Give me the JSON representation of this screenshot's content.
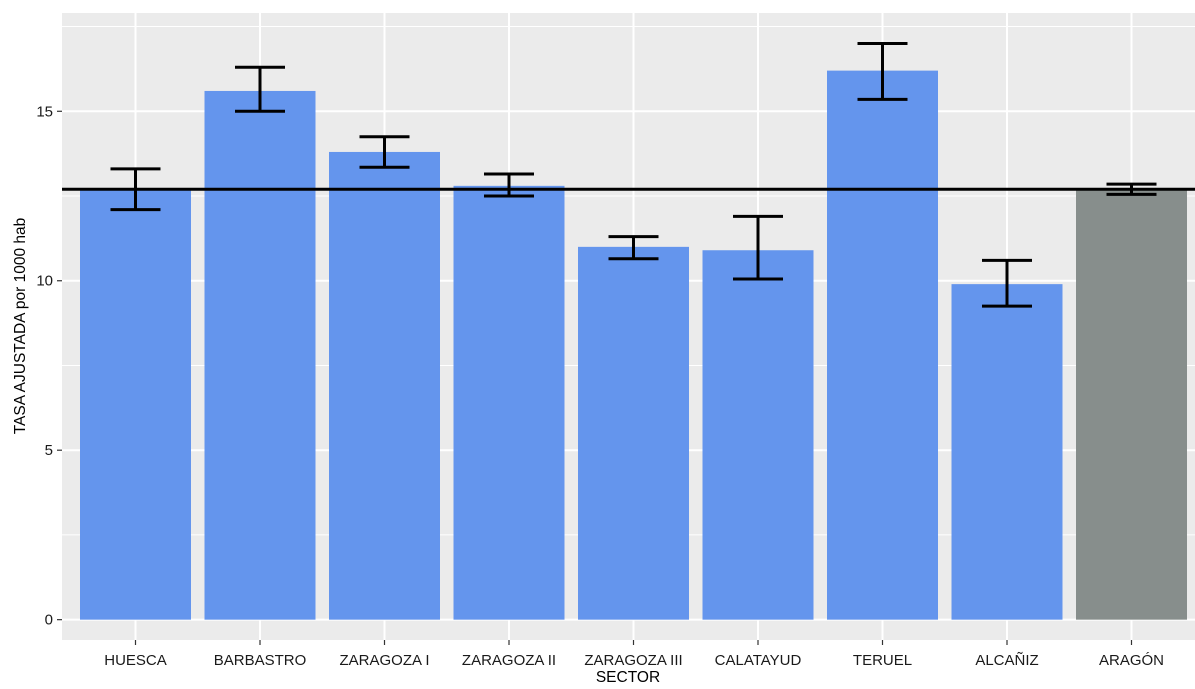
{
  "chart_data": {
    "type": "bar",
    "title": "",
    "xlabel": "SECTOR",
    "ylabel": "TASA AJUSTADA por 1000 hab",
    "ylim": [
      -0.6,
      17.9
    ],
    "yticks": [
      0,
      5,
      10,
      15
    ],
    "grid": true,
    "categories": [
      "HUESCA",
      "BARBASTRO",
      "ZARAGOZA I",
      "ZARAGOZA II",
      "ZARAGOZA III",
      "CALATAYUD",
      "TERUEL",
      "ALCAÑIZ",
      "ARAGÓN"
    ],
    "values": [
      12.7,
      15.6,
      13.8,
      12.8,
      11.0,
      10.9,
      16.2,
      9.9,
      12.7
    ],
    "ci_lower": [
      12.1,
      15.0,
      13.35,
      12.5,
      10.65,
      10.05,
      15.35,
      9.25,
      12.55
    ],
    "ci_upper": [
      13.3,
      16.3,
      14.25,
      13.15,
      11.3,
      11.9,
      17.0,
      10.6,
      12.85
    ],
    "reference_line": 12.7,
    "bar_color": "#6495ED",
    "highlight_color": "#878E8C",
    "highlight_category": "ARAGÓN",
    "panel_background": "#EBEBEB",
    "grid_color": "#FFFFFF"
  }
}
